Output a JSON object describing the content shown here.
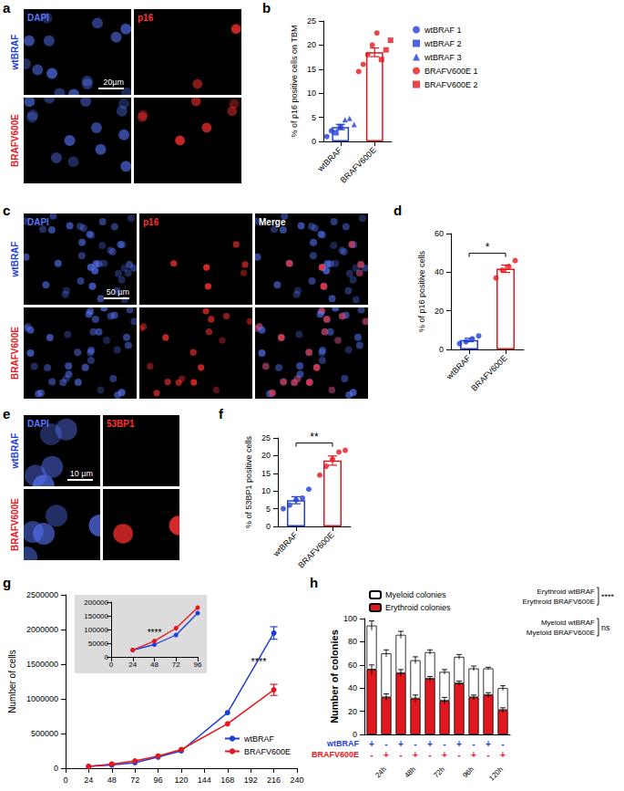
{
  "image_panels": [
    {
      "letter": "a",
      "columns": [
        {
          "label": "DAPI",
          "color": "#5a78ff"
        },
        {
          "label": "p16",
          "color": "#ff3030"
        }
      ],
      "rows": [
        {
          "label": "wtBRAF",
          "color": "#1f3fd6"
        },
        {
          "label": "BRAFV600E",
          "color": "#e3171e"
        }
      ],
      "scale_bar": "20µm"
    },
    {
      "letter": "c",
      "columns": [
        {
          "label": "DAPI",
          "color": "#5a78ff"
        },
        {
          "label": "p16",
          "color": "#ff3030"
        },
        {
          "label": "Merge",
          "color": "#ffffff"
        }
      ],
      "rows": [
        {
          "label": "wtBRAF",
          "color": "#1f3fd6"
        },
        {
          "label": "BRAFV600E",
          "color": "#e3171e"
        }
      ],
      "scale_bar": "50 µm"
    },
    {
      "letter": "e",
      "columns": [
        {
          "label": "DAPI",
          "color": "#5a78ff"
        },
        {
          "label": "53BP1",
          "color": "#ff3030"
        }
      ],
      "rows": [
        {
          "label": "wtBRAF",
          "color": "#1f3fd6"
        },
        {
          "label": "BRAFV600E",
          "color": "#e3171e"
        }
      ],
      "scale_bar": "10 µm"
    }
  ],
  "chart_data": [
    {
      "letter": "b",
      "type": "bar",
      "categories": [
        "wtBRAF",
        "BRAFV600E"
      ],
      "values": [
        3.0,
        18.5
      ],
      "errors": [
        0.55,
        0.9
      ],
      "colors": [
        "#1f3fd6",
        "#e3171e"
      ],
      "ylabel": "% of p16 positive cells on TBM",
      "ylim": [
        0,
        25
      ],
      "yticks": [
        0,
        5,
        10,
        15,
        20,
        25
      ],
      "grid": false,
      "legend": "right",
      "points": [
        {
          "name": "wtBRAF 1",
          "category": "wtBRAF",
          "color": "#1f3fd6",
          "marker": "circle",
          "values": [
            1.0,
            2.2
          ]
        },
        {
          "name": "wtBRAF 2",
          "category": "wtBRAF",
          "color": "#1f3fd6",
          "marker": "square",
          "values": [
            1.8,
            3.0
          ]
        },
        {
          "name": "wtBRAF 3",
          "category": "wtBRAF",
          "color": "#1f3fd6",
          "marker": "triangle",
          "values": [
            4.5,
            4.8,
            3.5
          ]
        },
        {
          "name": "BRAFV600E 1",
          "category": "BRAFV600E",
          "color": "#e3171e",
          "marker": "circle",
          "values": [
            14.5,
            16,
            18,
            20,
            22.5
          ]
        },
        {
          "name": "BRAFV600E 2",
          "category": "BRAFV600E",
          "color": "#e3171e",
          "marker": "square",
          "values": [
            17,
            19,
            21
          ]
        }
      ]
    },
    {
      "letter": "d",
      "type": "bar",
      "categories": [
        "wtBRAF",
        "BRAFV600E"
      ],
      "values": [
        4.9,
        41.8
      ],
      "errors": [
        0.9,
        1.9
      ],
      "colors": [
        "#1f3fd6",
        "#e3171e"
      ],
      "ylabel": "% of p16 positive cells",
      "ylim": [
        0,
        60
      ],
      "yticks": [
        0,
        20,
        40,
        60
      ],
      "grid": false,
      "significance": "*",
      "points": [
        {
          "category": "wtBRAF",
          "color": "#1f3fd6",
          "marker": "circle",
          "values": [
            3,
            4,
            5.5,
            7
          ]
        },
        {
          "category": "BRAFV600E",
          "color": "#e3171e",
          "marker": "circle",
          "values": [
            37,
            41,
            43,
            46
          ]
        }
      ]
    },
    {
      "letter": "f",
      "type": "bar",
      "categories": [
        "wtBRAF",
        "BRAFV600E"
      ],
      "values": [
        7.4,
        18.6
      ],
      "errors": [
        1.0,
        1.3
      ],
      "colors": [
        "#1f3fd6",
        "#e3171e"
      ],
      "ylabel": "% of 53BP1 positive cells",
      "ylim": [
        0,
        25
      ],
      "yticks": [
        0,
        5,
        10,
        15,
        20,
        25
      ],
      "grid": false,
      "significance": "**",
      "points": [
        {
          "category": "wtBRAF",
          "color": "#1f3fd6",
          "marker": "circle",
          "values": [
            5,
            6,
            7.5,
            8,
            10.5
          ]
        },
        {
          "category": "BRAFV600E",
          "color": "#e3171e",
          "marker": "circle",
          "values": [
            14.5,
            17,
            19,
            21,
            21.5
          ]
        }
      ]
    },
    {
      "letter": "g",
      "type": "line",
      "ylabel": "Number of cells",
      "x": [
        24,
        48,
        72,
        96,
        120,
        168,
        216
      ],
      "series": [
        {
          "name": "wtBRAF",
          "color": "#1f3fd6",
          "marker": "circle",
          "values": [
            25000,
            45000,
            80000,
            160000,
            250000,
            800000,
            1950000
          ],
          "errors": [
            null,
            null,
            null,
            null,
            null,
            null,
            90000
          ]
        },
        {
          "name": "BRAFV600E",
          "color": "#e3171e",
          "marker": "circle",
          "values": [
            25000,
            60000,
            105000,
            175000,
            270000,
            640000,
            1130000
          ],
          "errors": [
            null,
            null,
            null,
            null,
            null,
            null,
            80000
          ]
        }
      ],
      "xlim": [
        0,
        240
      ],
      "xticks": [
        0,
        24,
        48,
        72,
        96,
        120,
        144,
        168,
        192,
        216,
        240
      ],
      "ylim": [
        0,
        2500000
      ],
      "yticks": [
        0,
        500000,
        1000000,
        1500000,
        2000000,
        2500000
      ],
      "grid": false,
      "legend": "right",
      "annotations": [
        {
          "x": 216,
          "label": "****"
        }
      ],
      "inset": {
        "x": [
          24,
          48,
          72,
          96
        ],
        "values": [
          [
            25000,
            45000,
            80000,
            160000
          ],
          [
            25000,
            58000,
            105000,
            180000
          ]
        ],
        "xlim": [
          0,
          96
        ],
        "xticks": [
          0,
          24,
          48,
          72,
          96
        ],
        "ylim": [
          0,
          200000
        ],
        "yticks": [
          0,
          50000,
          100000,
          150000,
          200000
        ],
        "annotations": [
          {
            "x": 48,
            "label": "****"
          }
        ]
      }
    },
    {
      "letter": "h",
      "type": "bar",
      "stacked": true,
      "categories": [
        null,
        null,
        null,
        null,
        null,
        null,
        null,
        null,
        null,
        null
      ],
      "series": [
        {
          "name": "Erythroid colonies",
          "color": "#e3171e",
          "values": [
            56,
            32,
            53,
            31,
            48,
            29,
            44,
            32,
            34,
            21
          ],
          "errors": [
            4,
            3,
            3,
            3,
            2,
            3,
            2,
            2,
            2,
            2
          ]
        },
        {
          "name": "Myeloid colonies",
          "color": "#ffffff",
          "values": [
            38,
            38,
            33,
            33,
            23,
            25,
            23,
            25,
            23,
            19
          ],
          "errors": [
            4,
            3,
            3,
            3,
            2,
            2,
            2,
            2,
            1,
            2
          ]
        }
      ],
      "ylabel": "Number of colonies",
      "ylim": [
        0,
        100
      ],
      "yticks": [
        0,
        20,
        40,
        60,
        80,
        100
      ],
      "grid": false,
      "legend": "top",
      "conditions": [
        {
          "label": "wtBRAF",
          "color": "#1f3fd6",
          "marks": [
            "+",
            "-",
            "+",
            "-",
            "+",
            "-",
            "+",
            "-",
            "+",
            "-"
          ]
        },
        {
          "label": "BRAFV600E",
          "color": "#e3171e",
          "marks": [
            "-",
            "+",
            "-",
            "+",
            "-",
            "+",
            "-",
            "+",
            "-",
            "+"
          ]
        }
      ],
      "time_labels": [
        "24h",
        "48h",
        "72h",
        "96h",
        "120h"
      ],
      "comparisons": [
        {
          "groups": [
            "Erythroid wtBRAF",
            "Erythroid BRAFV600E"
          ],
          "label": "****"
        },
        {
          "groups": [
            "Myeloid wtBRAF",
            "Myeloid BRAFV600E"
          ],
          "label": "ns"
        }
      ]
    }
  ]
}
